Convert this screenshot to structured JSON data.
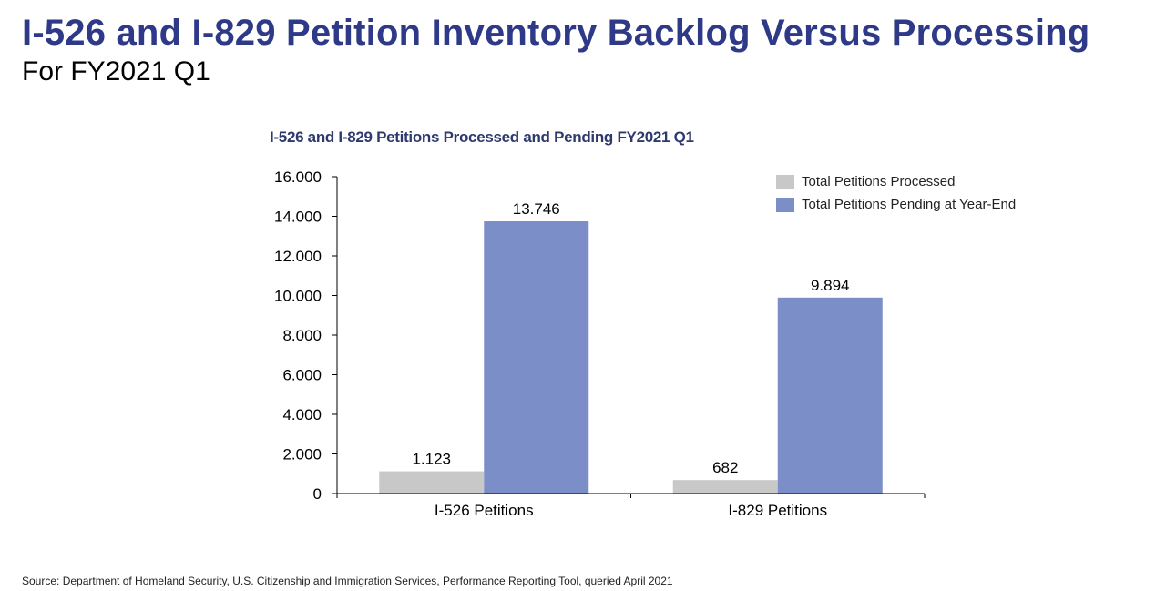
{
  "slide": {
    "title": "I-526 and I-829 Petition Inventory Backlog Versus Processing",
    "subtitle": "For FY2021 Q1",
    "source": "Source: Department of Homeland Security, U.S. Citizenship and Immigration Services, Performance Reporting Tool, queried April 2021"
  },
  "chart_data": {
    "type": "bar",
    "title": "I-526 and I-829 Petitions Processed and Pending FY2021 Q1",
    "categories": [
      "I-526 Petitions",
      "I-829 Petitions"
    ],
    "series": [
      {
        "name": "Total Petitions Processed",
        "values": [
          1123,
          682
        ],
        "labels": [
          "1.123",
          "682"
        ],
        "color": "#c8c8c8"
      },
      {
        "name": "Total Petitions Pending at Year-End",
        "values": [
          13746,
          9894
        ],
        "labels": [
          "13.746",
          "9.894"
        ],
        "color": "#7b8ec8"
      }
    ],
    "yticks": [
      0,
      2000,
      4000,
      6000,
      8000,
      10000,
      12000,
      14000,
      16000
    ],
    "ytick_labels": [
      "0",
      "2.000",
      "4.000",
      "6.000",
      "8.000",
      "10.000",
      "12.000",
      "14.000",
      "16.000"
    ],
    "ylim": [
      0,
      16000
    ],
    "xlabel": "",
    "ylabel": "",
    "grid": false,
    "legend_position": "top-right"
  }
}
